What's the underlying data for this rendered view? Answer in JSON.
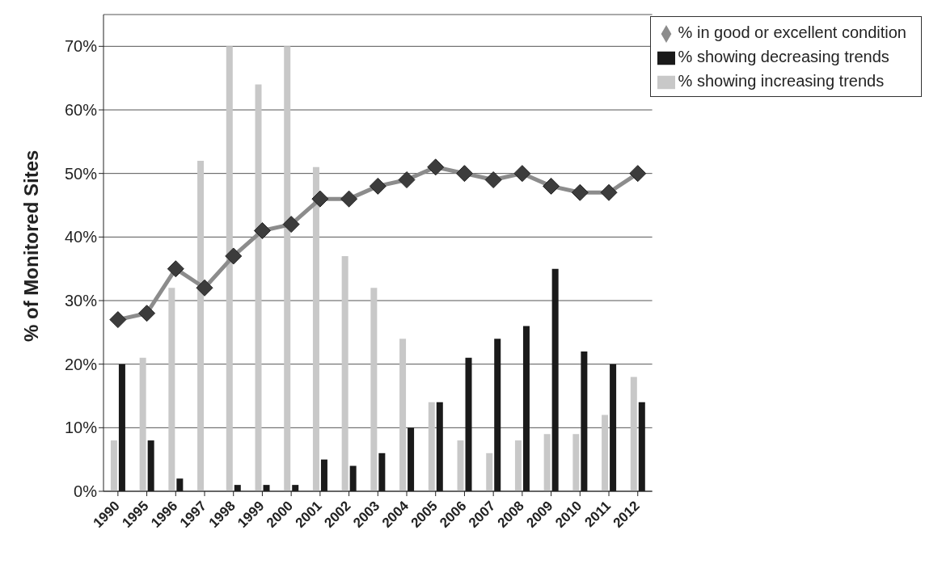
{
  "chart_data": {
    "type": "bar",
    "ylabel": "% of Monitored Sites",
    "categories": [
      "1990",
      "1995",
      "1996",
      "1997",
      "1998",
      "1999",
      "2000",
      "2001",
      "2002",
      "2003",
      "2004",
      "2005",
      "2006",
      "2007",
      "2008",
      "2009",
      "2010",
      "2011",
      "2012"
    ],
    "series": [
      {
        "name": "% showing increasing trends",
        "color": "#c8c8c8",
        "values": [
          8,
          21,
          32,
          52,
          70,
          64,
          70,
          51,
          37,
          32,
          24,
          14,
          8,
          6,
          8,
          9,
          9,
          12,
          18
        ]
      },
      {
        "name": "% showing decreasing trends",
        "color": "#1a1a1a",
        "values": [
          20,
          8,
          2,
          0,
          1,
          1,
          1,
          5,
          4,
          6,
          10,
          14,
          21,
          24,
          26,
          35,
          22,
          20,
          14
        ]
      },
      {
        "name": "% in good or excellent condition",
        "type": "line",
        "color": "#8c8c8c",
        "values": [
          27,
          28,
          35,
          32,
          37,
          41,
          42,
          46,
          46,
          48,
          49,
          51,
          50,
          49,
          50,
          48,
          47,
          47,
          50
        ]
      }
    ],
    "ylim": [
      0,
      75
    ],
    "yticks": [
      {
        "value": 0,
        "label": "0%"
      },
      {
        "value": 10,
        "label": "10%"
      },
      {
        "value": 20,
        "label": "20%"
      },
      {
        "value": 30,
        "label": "30%"
      },
      {
        "value": 40,
        "label": "40%"
      },
      {
        "value": 50,
        "label": "50%"
      },
      {
        "value": 60,
        "label": "60%"
      },
      {
        "value": 70,
        "label": "70%"
      }
    ],
    "grid": "y",
    "legend": "top right",
    "marker": "diamond",
    "line_style": "solid"
  }
}
